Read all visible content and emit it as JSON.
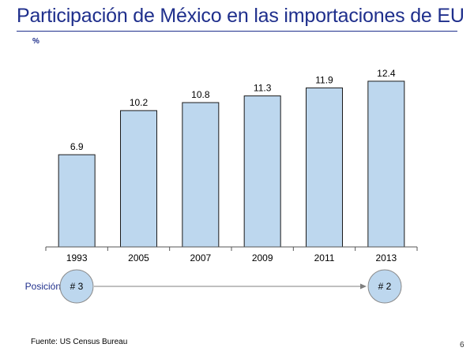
{
  "page": {
    "title": "Participación de México en las importaciones de EU",
    "unit": "%",
    "source": "Fuente:  US Census Bureau",
    "page_number": "6"
  },
  "colors": {
    "title": "#1f2f8c",
    "bar_fill": "#bdd7ee",
    "bar_stroke": "#1a1a1a",
    "position_circle_fill": "#bdd7ee",
    "position_circle_stroke": "#8a8a8a",
    "position_label": "#1f2f8c"
  },
  "position": {
    "label": "Posición",
    "start": "# 3",
    "end": "# 2"
  },
  "chart_data": {
    "type": "bar",
    "categories": [
      "1993",
      "2005",
      "2007",
      "2009",
      "2011",
      "2013"
    ],
    "values": [
      6.9,
      10.2,
      10.8,
      11.3,
      11.9,
      12.4
    ],
    "data_labels": [
      "6.9",
      "10.2",
      "10.8",
      "11.3",
      "11.9",
      "12.4"
    ],
    "title": "",
    "xlabel": "",
    "ylabel": "%",
    "ylim": [
      0,
      14
    ],
    "grid": false,
    "legend": "none"
  }
}
